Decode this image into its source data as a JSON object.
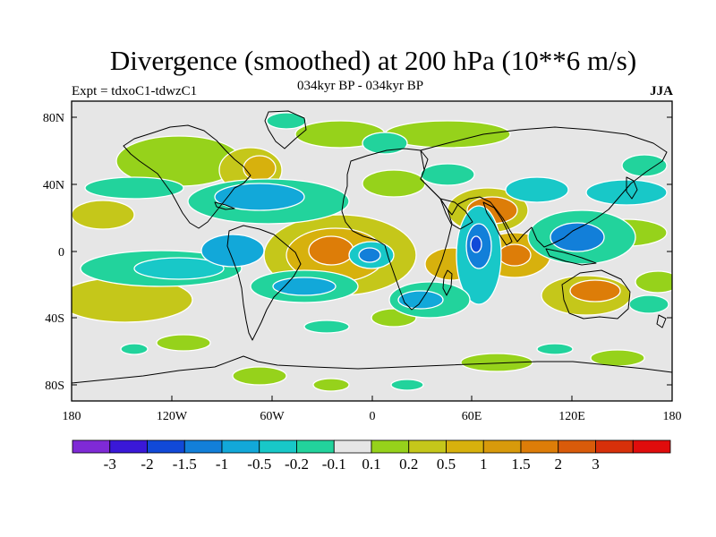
{
  "header": {
    "title": "Divergence (smoothed) at 200 hPa (10**6 m/s)",
    "expt": "Expt = tdxoC1-tdwzC1",
    "period": "034kyr BP - 034kyr BP",
    "season": "JJA"
  },
  "axes": {
    "lat_labels": [
      "80N",
      "40N",
      "0",
      "40S",
      "80S"
    ],
    "lon_labels": [
      "180",
      "120W",
      "60W",
      "0",
      "60E",
      "120E",
      "180"
    ]
  },
  "colors": {
    "land_outline": "#000000",
    "background_field": "#e6e6e6",
    "contour_line": "#ffffff"
  },
  "colorbar": {
    "colors": [
      "#7f2ad6",
      "#3a18d8",
      "#1149d8",
      "#127fd9",
      "#12a8d9",
      "#18c8c8",
      "#22d39c",
      "#e6e6e6",
      "#96d21b",
      "#c5c71a",
      "#d7b10d",
      "#d89a0b",
      "#dd7d08",
      "#d95b0a",
      "#d7300a",
      "#e00c0c"
    ],
    "labels": [
      "-3",
      "-2",
      "-1.5",
      "-1",
      "-0.5",
      "-0.2",
      "-0.1",
      "0.1",
      "0.2",
      "0.5",
      "1",
      "1.5",
      "2",
      "3"
    ]
  }
}
